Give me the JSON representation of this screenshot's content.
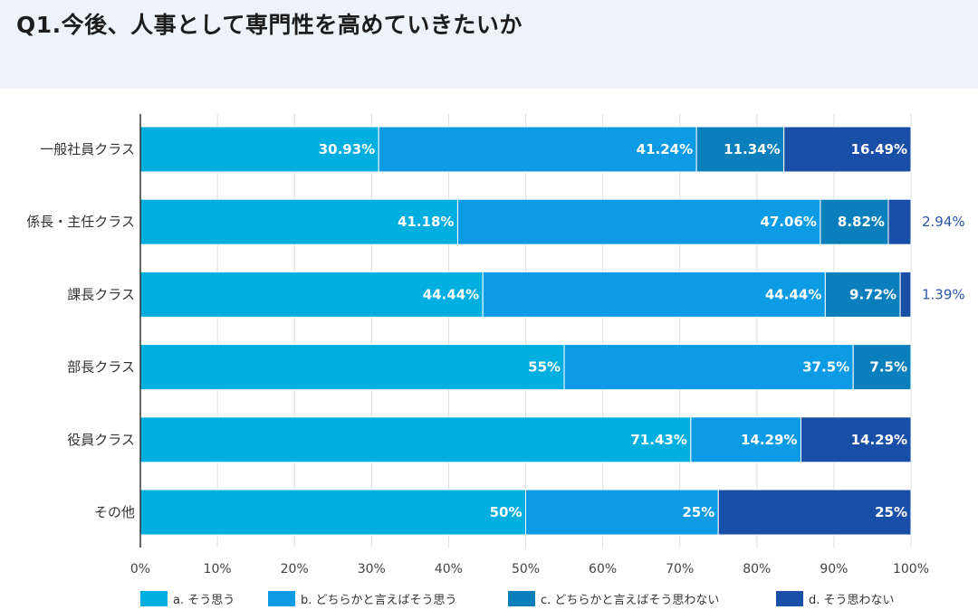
{
  "title": "Q1.今後、人事として専門性を高めていきたいか",
  "chart_data": {
    "type": "bar",
    "orientation": "horizontal",
    "stacked": true,
    "title": "Q1.今後、人事として専門性を高めていきたいか",
    "categories": [
      "一般社員クラス",
      "係長・主任クラス",
      "課長クラス",
      "部長クラス",
      "役員クラス",
      "その他"
    ],
    "series": [
      {
        "name": "a. そう思う",
        "color": "#00aee0",
        "values": [
          30.93,
          41.18,
          44.44,
          55,
          71.43,
          50
        ],
        "labels": [
          "30.93%",
          "41.18%",
          "44.44%",
          "55%",
          "71.43%",
          "50%"
        ]
      },
      {
        "name": "b. どちらかと言えばそう思う",
        "color": "#0d9be6",
        "values": [
          41.24,
          47.06,
          44.44,
          37.5,
          14.29,
          25
        ],
        "labels": [
          "41.24%",
          "47.06%",
          "44.44%",
          "37.5%",
          "14.29%",
          "25%"
        ]
      },
      {
        "name": "c. どちらかと言えばそう思わない",
        "color": "#0b7fbc",
        "values": [
          11.34,
          8.82,
          9.72,
          7.5,
          0,
          0
        ],
        "labels": [
          "11.34%",
          "8.82%",
          "9.72%",
          "7.5%",
          "",
          ""
        ]
      },
      {
        "name": "d. そう思わない",
        "color": "#1a4fa8",
        "values": [
          16.49,
          2.94,
          1.39,
          0,
          14.29,
          25
        ],
        "labels": [
          "16.49%",
          "2.94%",
          "1.39%",
          "",
          "14.29%",
          "25%"
        ]
      }
    ],
    "xlim": [
      0,
      100
    ],
    "xticks": [
      "0%",
      "10%",
      "20%",
      "30%",
      "40%",
      "50%",
      "60%",
      "70%",
      "80%",
      "90%",
      "100%"
    ],
    "grid": true,
    "legend_position": "bottom"
  }
}
